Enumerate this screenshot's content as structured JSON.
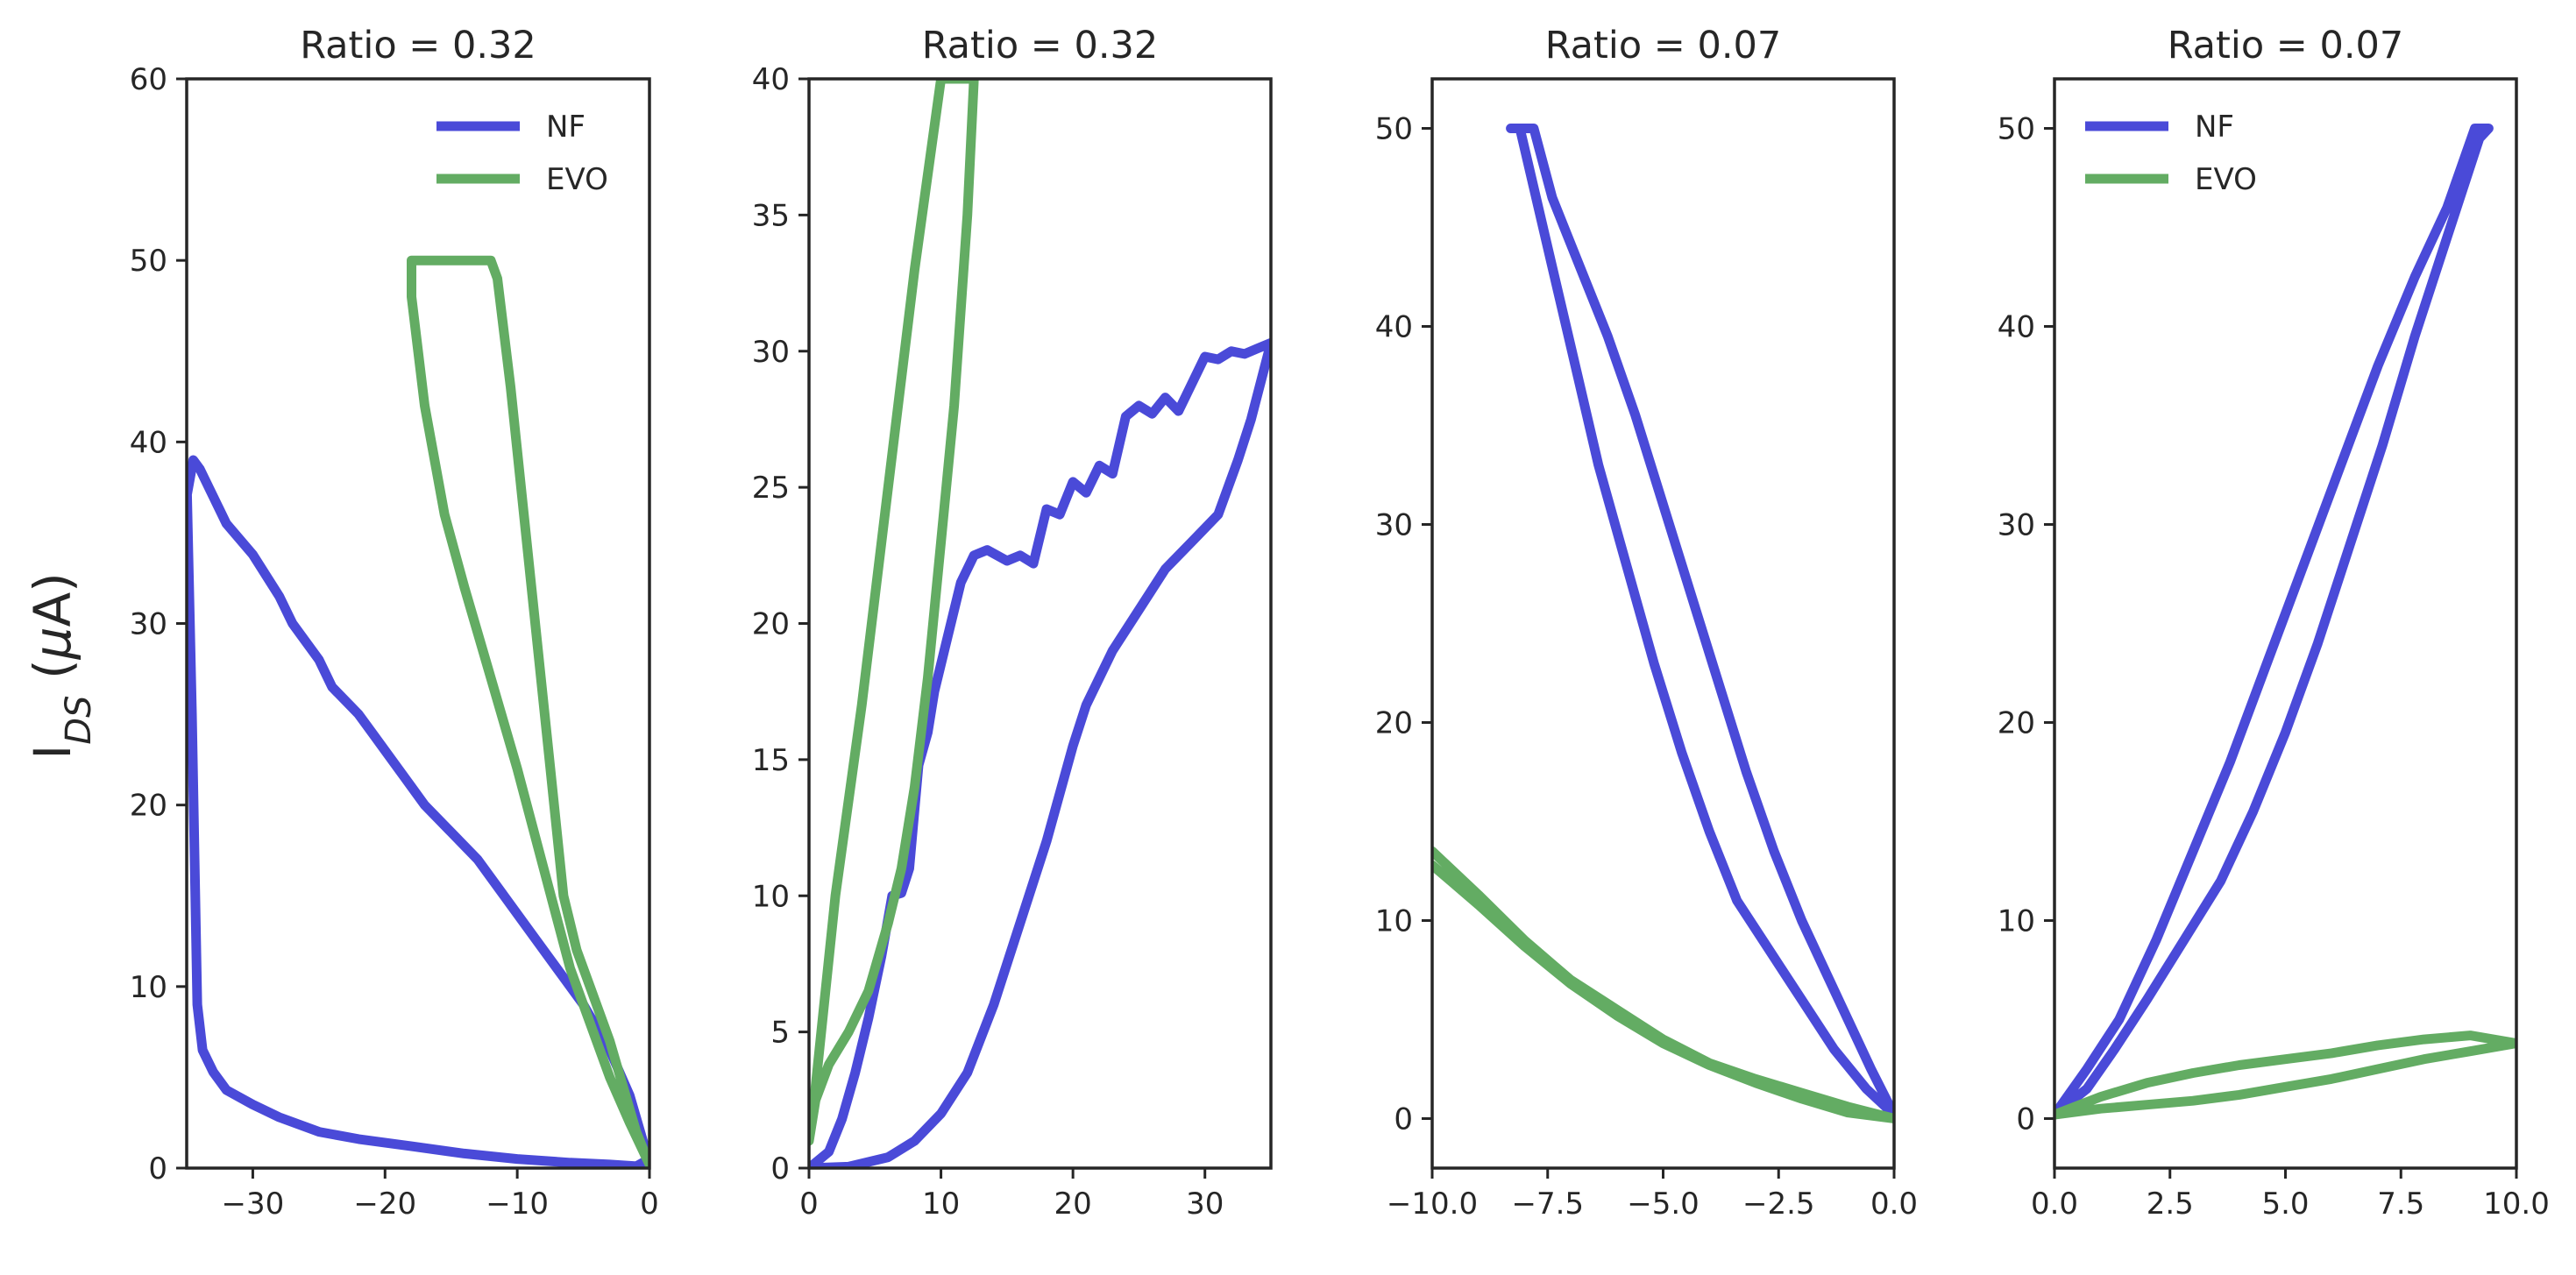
{
  "figure": {
    "ylabel": "I_DS (μA)"
  },
  "colors": {
    "NF": "#4a4ad8",
    "EVO": "#63ac63"
  },
  "chart_data": [
    {
      "type": "line",
      "title": "Ratio = 0.32",
      "xlim": [
        -35,
        0
      ],
      "ylim": [
        0,
        60
      ],
      "xticks": [
        -30,
        -20,
        -10,
        0
      ],
      "yticks": [
        0,
        10,
        20,
        30,
        40,
        50,
        60
      ],
      "legend": "top-right",
      "series": [
        {
          "name": "NF",
          "points": [
            [
              -35,
              37
            ],
            [
              -34.5,
              39
            ],
            [
              -34,
              38.5
            ],
            [
              -33,
              37
            ],
            [
              -32,
              35.5
            ],
            [
              -30,
              33.8
            ],
            [
              -28,
              31.5
            ],
            [
              -27,
              30
            ],
            [
              -25,
              28
            ],
            [
              -24,
              26.5
            ],
            [
              -22,
              25
            ],
            [
              -21,
              24
            ],
            [
              -19,
              22
            ],
            [
              -18,
              21
            ],
            [
              -17,
              20
            ],
            [
              -15,
              18.5
            ],
            [
              -13,
              17
            ],
            [
              -11,
              15
            ],
            [
              -9,
              13
            ],
            [
              -7,
              11
            ],
            [
              -5,
              9
            ],
            [
              -3,
              6.5
            ],
            [
              -1.5,
              4
            ],
            [
              -0.5,
              1.5
            ],
            [
              0,
              0.5
            ],
            [
              -1,
              0.1
            ],
            [
              -3,
              0.2
            ],
            [
              -6,
              0.3
            ],
            [
              -10,
              0.5
            ],
            [
              -14,
              0.8
            ],
            [
              -18,
              1.2
            ],
            [
              -22,
              1.6
            ],
            [
              -25,
              2
            ],
            [
              -28,
              2.8
            ],
            [
              -30,
              3.5
            ],
            [
              -32,
              4.3
            ],
            [
              -33,
              5.3
            ],
            [
              -33.8,
              6.5
            ],
            [
              -34.2,
              9
            ],
            [
              -34.6,
              25
            ],
            [
              -35,
              38
            ]
          ]
        },
        {
          "name": "EVO",
          "points": [
            [
              -18,
              50
            ],
            [
              -12,
              50
            ],
            [
              -11.5,
              49
            ],
            [
              -10.5,
              43
            ],
            [
              -9.5,
              36
            ],
            [
              -8.5,
              29
            ],
            [
              -7.5,
              22
            ],
            [
              -6.5,
              15
            ],
            [
              -5.5,
              12
            ],
            [
              -4.5,
              10
            ],
            [
              -3,
              7
            ],
            [
              -2,
              4.5
            ],
            [
              -1,
              2
            ],
            [
              0,
              0.2
            ],
            [
              -1.5,
              2.5
            ],
            [
              -3,
              5
            ],
            [
              -4.5,
              8
            ],
            [
              -6,
              11
            ],
            [
              -8,
              16.5
            ],
            [
              -10,
              22
            ],
            [
              -12,
              27
            ],
            [
              -14,
              32
            ],
            [
              -15.5,
              36
            ],
            [
              -17,
              42
            ],
            [
              -18,
              48
            ],
            [
              -18,
              50
            ]
          ]
        }
      ]
    },
    {
      "type": "line",
      "title": "Ratio = 0.32",
      "xlim": [
        0,
        35
      ],
      "ylim": [
        0,
        40
      ],
      "xticks": [
        0,
        10,
        20,
        30
      ],
      "yticks": [
        0,
        5,
        10,
        15,
        20,
        25,
        30,
        35,
        40
      ],
      "series": [
        {
          "name": "NF",
          "points": [
            [
              0,
              0
            ],
            [
              1.5,
              0.6
            ],
            [
              2.5,
              1.8
            ],
            [
              3.5,
              3.5
            ],
            [
              4.5,
              5.5
            ],
            [
              5.5,
              7.8
            ],
            [
              6.3,
              10
            ],
            [
              7,
              10.1
            ],
            [
              7.6,
              11
            ],
            [
              8.3,
              14.8
            ],
            [
              9,
              16
            ],
            [
              9.5,
              17.5
            ],
            [
              10.5,
              19.5
            ],
            [
              11.5,
              21.5
            ],
            [
              12.5,
              22.5
            ],
            [
              13.5,
              22.7
            ],
            [
              15,
              22.3
            ],
            [
              16,
              22.5
            ],
            [
              17,
              22.2
            ],
            [
              18,
              24.2
            ],
            [
              19,
              24
            ],
            [
              20,
              25.2
            ],
            [
              21,
              24.8
            ],
            [
              22,
              25.8
            ],
            [
              23,
              25.5
            ],
            [
              24,
              27.6
            ],
            [
              25,
              28
            ],
            [
              26,
              27.7
            ],
            [
              27,
              28.3
            ],
            [
              28,
              27.8
            ],
            [
              29,
              28.8
            ],
            [
              30,
              29.8
            ],
            [
              31,
              29.7
            ],
            [
              32,
              30
            ],
            [
              33,
              29.9
            ],
            [
              34,
              30.1
            ],
            [
              35,
              30.3
            ],
            [
              33.5,
              27.5
            ],
            [
              32.5,
              26
            ],
            [
              31,
              24
            ],
            [
              29,
              23
            ],
            [
              27,
              22
            ],
            [
              25,
              20.5
            ],
            [
              23,
              19
            ],
            [
              21,
              17
            ],
            [
              20,
              15.5
            ],
            [
              18,
              12
            ],
            [
              16,
              9
            ],
            [
              14,
              6
            ],
            [
              12,
              3.5
            ],
            [
              10,
              2
            ],
            [
              8,
              1
            ],
            [
              6,
              0.4
            ],
            [
              3,
              0.05
            ],
            [
              0,
              0
            ]
          ]
        },
        {
          "name": "EVO",
          "points": [
            [
              0,
              1
            ],
            [
              0.5,
              2.5
            ],
            [
              1.5,
              3.8
            ],
            [
              3,
              5
            ],
            [
              4.5,
              6.5
            ],
            [
              6,
              9
            ],
            [
              7,
              11
            ],
            [
              8,
              14
            ],
            [
              9,
              18
            ],
            [
              10,
              23
            ],
            [
              11,
              28
            ],
            [
              12,
              35
            ],
            [
              12.5,
              40
            ],
            [
              10,
              40
            ],
            [
              8,
              33
            ],
            [
              6,
              25
            ],
            [
              4,
              17
            ],
            [
              2,
              10
            ],
            [
              0.5,
              3
            ],
            [
              0,
              1
            ]
          ]
        }
      ]
    },
    {
      "type": "line",
      "title": "Ratio = 0.07",
      "xlim": [
        -10,
        0
      ],
      "ylim": [
        -2.5,
        52.5
      ],
      "xticks": [
        -10.0,
        -7.5,
        -5.0,
        -2.5,
        0.0
      ],
      "yticks": [
        0,
        10,
        20,
        30,
        40,
        50
      ],
      "series": [
        {
          "name": "NF",
          "points": [
            [
              -8.1,
              50
            ],
            [
              -7.8,
              47
            ],
            [
              -7.4,
              43
            ],
            [
              -6.9,
              38
            ],
            [
              -6.4,
              33
            ],
            [
              -5.8,
              28
            ],
            [
              -5.2,
              23
            ],
            [
              -4.6,
              18.5
            ],
            [
              -4.0,
              14.5
            ],
            [
              -3.4,
              11
            ],
            [
              -2.7,
              8.5
            ],
            [
              -2.0,
              6
            ],
            [
              -1.3,
              3.5
            ],
            [
              -0.6,
              1.5
            ],
            [
              0,
              0.2
            ],
            [
              -0.5,
              2.5
            ],
            [
              -1.0,
              5
            ],
            [
              -1.5,
              7.5
            ],
            [
              -2.0,
              10
            ],
            [
              -2.6,
              13.5
            ],
            [
              -3.2,
              17.5
            ],
            [
              -3.8,
              22
            ],
            [
              -4.4,
              26.5
            ],
            [
              -5.0,
              31
            ],
            [
              -5.6,
              35.5
            ],
            [
              -6.2,
              39.5
            ],
            [
              -6.8,
              43
            ],
            [
              -7.4,
              46.5
            ],
            [
              -7.8,
              50
            ],
            [
              -8.3,
              50
            ]
          ]
        },
        {
          "name": "EVO",
          "points": [
            [
              -10,
              13.5
            ],
            [
              -9,
              11.3
            ],
            [
              -8,
              9
            ],
            [
              -7,
              7
            ],
            [
              -6,
              5.5
            ],
            [
              -5,
              4
            ],
            [
              -4,
              2.8
            ],
            [
              -3,
              2
            ],
            [
              -2,
              1.3
            ],
            [
              -1,
              0.6
            ],
            [
              0,
              0
            ],
            [
              -1,
              0.3
            ],
            [
              -2,
              1
            ],
            [
              -3,
              1.8
            ],
            [
              -4,
              2.7
            ],
            [
              -5,
              3.8
            ],
            [
              -6,
              5.2
            ],
            [
              -7,
              6.8
            ],
            [
              -8,
              8.7
            ],
            [
              -9,
              10.8
            ],
            [
              -10,
              12.8
            ]
          ]
        }
      ]
    },
    {
      "type": "line",
      "title": "Ratio = 0.07",
      "xlim": [
        0,
        10
      ],
      "ylim": [
        -2.5,
        52.5
      ],
      "xticks": [
        0.0,
        2.5,
        5.0,
        7.5,
        10.0
      ],
      "yticks": [
        0,
        10,
        20,
        30,
        40,
        50
      ],
      "legend": "top-left",
      "series": [
        {
          "name": "NF",
          "points": [
            [
              0,
              0.2
            ],
            [
              0.7,
              1.5
            ],
            [
              1.3,
              3.5
            ],
            [
              2,
              6
            ],
            [
              2.8,
              9
            ],
            [
              3.6,
              12
            ],
            [
              4.3,
              15.5
            ],
            [
              5,
              19.5
            ],
            [
              5.7,
              24
            ],
            [
              6.4,
              29
            ],
            [
              7.1,
              34
            ],
            [
              7.8,
              39.5
            ],
            [
              8.5,
              44.5
            ],
            [
              9.2,
              49.5
            ],
            [
              9.4,
              50
            ],
            [
              9.1,
              50
            ],
            [
              8.5,
              46
            ],
            [
              7.8,
              42.5
            ],
            [
              7,
              38
            ],
            [
              6.2,
              33
            ],
            [
              5.4,
              28
            ],
            [
              4.6,
              23
            ],
            [
              3.8,
              18
            ],
            [
              3,
              13.5
            ],
            [
              2.2,
              9
            ],
            [
              1.4,
              5
            ],
            [
              0.7,
              2.5
            ],
            [
              0,
              0.2
            ]
          ]
        },
        {
          "name": "EVO",
          "points": [
            [
              0,
              0.2
            ],
            [
              1,
              0.5
            ],
            [
              2,
              0.7
            ],
            [
              3,
              0.9
            ],
            [
              4,
              1.2
            ],
            [
              5,
              1.6
            ],
            [
              6,
              2
            ],
            [
              7,
              2.5
            ],
            [
              8,
              3
            ],
            [
              9,
              3.4
            ],
            [
              10,
              3.8
            ],
            [
              9,
              4.2
            ],
            [
              8,
              4
            ],
            [
              7,
              3.7
            ],
            [
              6,
              3.3
            ],
            [
              5,
              3
            ],
            [
              4,
              2.7
            ],
            [
              3,
              2.3
            ],
            [
              2,
              1.8
            ],
            [
              1,
              1.1
            ],
            [
              0,
              0.2
            ]
          ]
        }
      ]
    }
  ]
}
